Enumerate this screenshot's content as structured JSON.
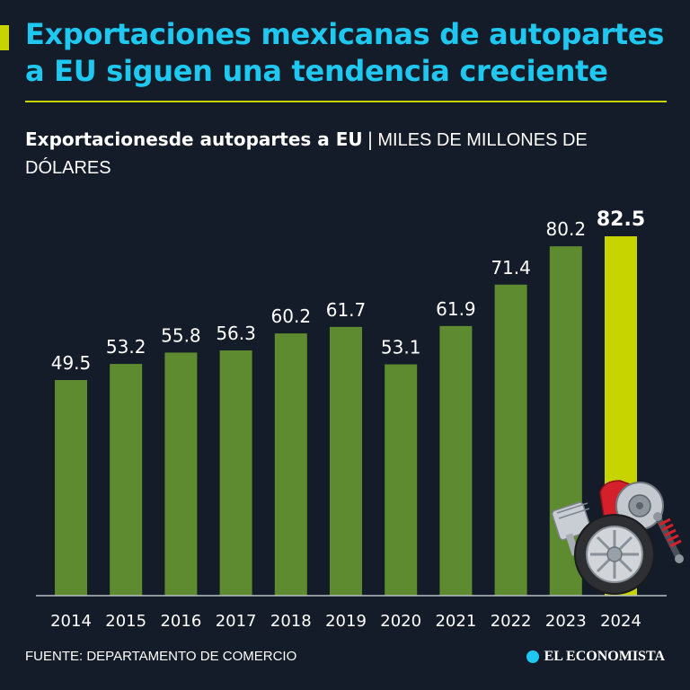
{
  "headline": "Exportaciones mexicanas de autopartes a EU siguen una tendencia creciente",
  "subtitle_bold": "Exportacionesde autopartes a EU",
  "subtitle_sep": "|",
  "subtitle_unit": "MILES DE MILLONES DE DÓLARES",
  "source": "FUENTE: DEPARTAMENTO DE COMERCIO",
  "brand": "EL ECONOMISTA",
  "colors": {
    "background": "#131c28",
    "headline": "#1ec8f0",
    "accent": "#c8d400",
    "bar": "#5e8b2f",
    "highlight_bar": "#c8d400"
  },
  "chart_data": {
    "type": "bar",
    "categories": [
      "2014",
      "2015",
      "2016",
      "2017",
      "2018",
      "2019",
      "2020",
      "2021",
      "2022",
      "2023",
      "2024"
    ],
    "values": [
      49.5,
      53.2,
      55.8,
      56.3,
      60.2,
      61.7,
      53.1,
      61.9,
      71.4,
      80.2,
      82.5
    ],
    "data_labels": [
      "49.5",
      "53.2",
      "55.8",
      "56.3",
      "60.2",
      "61.7",
      "53.1",
      "61.9",
      "71.4",
      "80.2",
      "82.5"
    ],
    "highlight": "2024",
    "ylim": [
      0,
      82.5
    ],
    "grid": false,
    "legend": "none",
    "decoration": "auto parts illustration (brake disc, caliper, tire, piston, shock absorber)"
  }
}
